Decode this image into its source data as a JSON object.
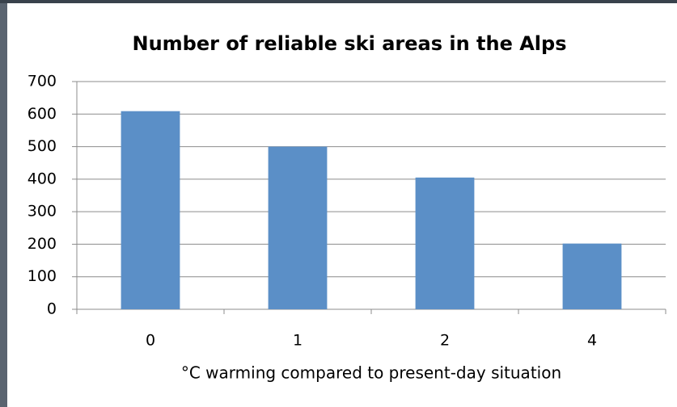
{
  "chart_data": {
    "type": "bar",
    "title": "Number of reliable ski areas in the Alps",
    "x_label": "°C warming compared to present-day situation",
    "categories": [
      "0",
      "1",
      "2",
      "4"
    ],
    "values": [
      609,
      500,
      405,
      202
    ],
    "color": "#5b8fc7",
    "ylim": [
      0,
      700
    ],
    "yticks": [
      0,
      100,
      200,
      300,
      400,
      500,
      600,
      700
    ],
    "grid": true
  }
}
